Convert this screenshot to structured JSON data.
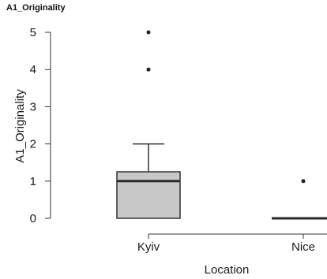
{
  "figure_title": "A1_Originality",
  "chart_data": {
    "type": "box",
    "title": "A1_Originality",
    "xlabel": "Location",
    "ylabel": "A1_Originality",
    "ylim": [
      0,
      5
    ],
    "y_ticks": [
      0,
      1,
      2,
      3,
      4,
      5
    ],
    "categories": [
      "Kyiv",
      "Nice"
    ],
    "boxes": [
      {
        "category": "Kyiv",
        "min": 0,
        "q1": 0,
        "median": 1,
        "q3": 1.25,
        "max": 2,
        "outliers": [
          4,
          5
        ]
      },
      {
        "category": "Nice",
        "min": 0,
        "q1": 0,
        "median": 0,
        "q3": 0,
        "max": 0,
        "outliers": [
          1
        ]
      }
    ],
    "box_fill": "#c8c8c8",
    "line_color": "#333333",
    "grid": false
  }
}
